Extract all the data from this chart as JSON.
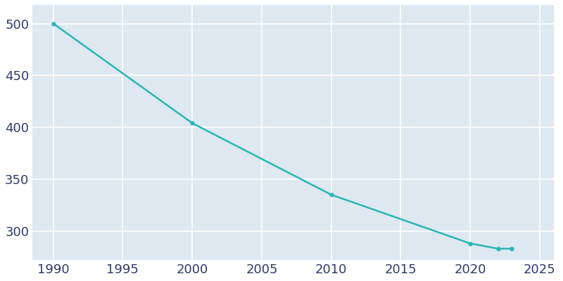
{
  "years": [
    1990,
    2000,
    2010,
    2020,
    2022,
    2023
  ],
  "population": [
    500,
    404,
    335,
    288,
    283,
    283
  ],
  "line_color": "#2ab5b5",
  "marker": "o",
  "marker_size": 3.5,
  "axes_facecolor": "#dde8f0",
  "fig_facecolor": "#ffffff",
  "grid_color": "#ffffff",
  "tick_color": "#2d3a6b",
  "xlim": [
    1988.5,
    2026
  ],
  "ylim": [
    272,
    518
  ],
  "xticks": [
    1990,
    1995,
    2000,
    2005,
    2010,
    2015,
    2020,
    2025
  ],
  "yticks": [
    300,
    350,
    400,
    450,
    500
  ],
  "linewidth": 1.8,
  "tick_labelsize": 13
}
